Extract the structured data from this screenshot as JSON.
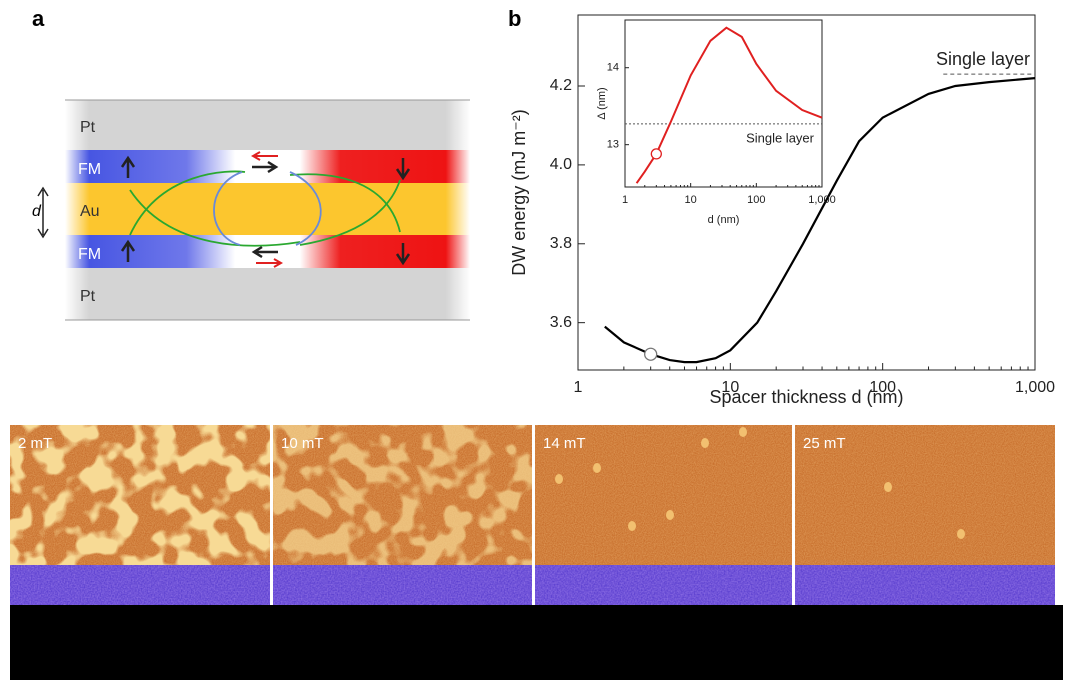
{
  "panel_labels": [
    "a",
    "b"
  ],
  "diagram": {
    "layers": [
      "Pt",
      "FM",
      "Au",
      "FM",
      "Pt"
    ],
    "spacer_label": "d"
  },
  "chart_data": [
    {
      "type": "line",
      "xlabel": "Spacer thickness d (nm)",
      "ylabel": "DW energy (mJ m⁻²)",
      "log_x": true,
      "xlim": [
        1,
        1000
      ],
      "xticks": [
        1,
        10,
        100,
        {
          "value": 1000,
          "label": "1,000"
        }
      ],
      "ylim": [
        3.48,
        4.38
      ],
      "yticks": [
        3.6,
        3.8,
        {
          "value": 4,
          "label": "4.0"
        },
        4.2
      ],
      "x": [
        1.5,
        2,
        3,
        4,
        5,
        6,
        8,
        10,
        15,
        20,
        30,
        50,
        70,
        100,
        200,
        300,
        500,
        1000
      ],
      "values": [
        3.59,
        3.55,
        3.52,
        3.505,
        3.5,
        3.5,
        3.51,
        3.53,
        3.6,
        3.68,
        3.8,
        3.96,
        4.06,
        4.12,
        4.18,
        4.2,
        4.21,
        4.22
      ],
      "color": "#000000",
      "marker": {
        "x": 3,
        "value": 3.52
      },
      "reference_line": {
        "value": 4.23,
        "x_from": 250,
        "label": "Single layer"
      }
    },
    {
      "type": "line",
      "xlabel": "d (nm)",
      "ylabel": "Δ (nm)",
      "log_x": true,
      "xlim": [
        1,
        1000
      ],
      "xticks": [
        1,
        10,
        100,
        {
          "value": 1000,
          "label": "1,000"
        }
      ],
      "ylim": [
        12.45,
        14.62
      ],
      "yticks": [
        13,
        14
      ],
      "x": [
        1.5,
        2,
        3,
        5,
        10,
        20,
        35,
        60,
        100,
        200,
        500,
        1000
      ],
      "values": [
        12.5,
        12.65,
        12.88,
        13.3,
        13.9,
        14.35,
        14.52,
        14.4,
        14.05,
        13.7,
        13.45,
        13.35
      ],
      "color": "#e02020",
      "marker": {
        "x": 3,
        "value": 12.88
      },
      "reference_line": {
        "value": 13.27,
        "x_from": 1,
        "label": "Single layer"
      }
    }
  ],
  "images": {
    "fields": [
      "2 mT",
      "10 mT",
      "14 mT",
      "25 mT"
    ]
  }
}
